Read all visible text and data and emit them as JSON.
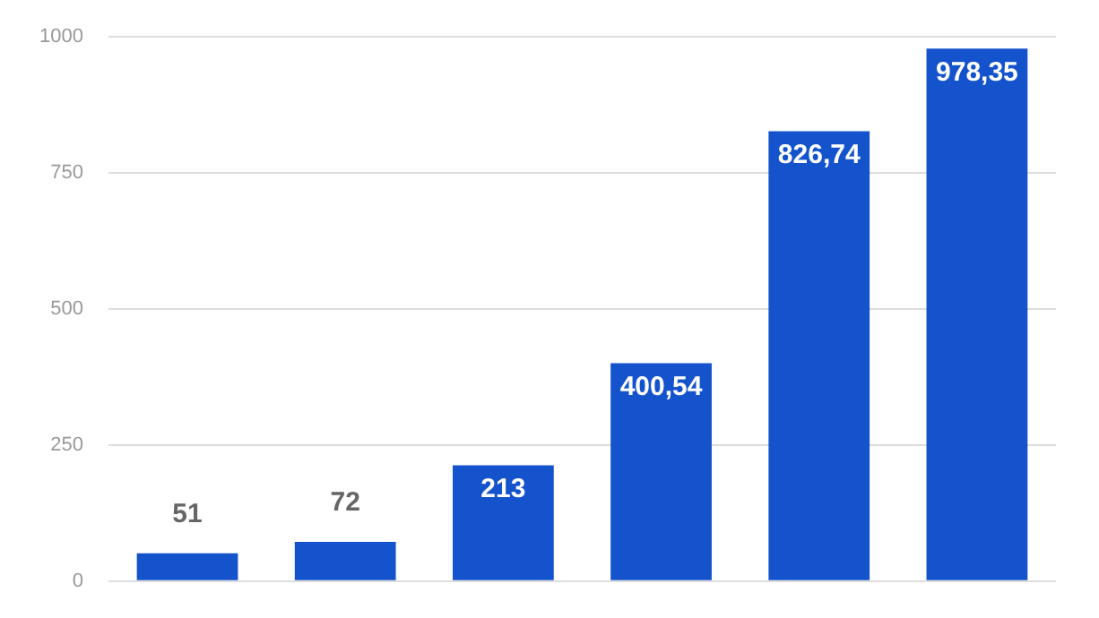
{
  "chart_data": {
    "type": "bar",
    "categories": [
      null,
      null,
      null,
      null,
      null,
      null
    ],
    "values": [
      51,
      72,
      213,
      400.54,
      826.74,
      978.35
    ],
    "value_labels": [
      "51",
      "72",
      "213",
      "400,54",
      "826,74",
      "978,35"
    ],
    "color": "#1453cc",
    "ylim": [
      0,
      1000
    ],
    "yticks": [
      0,
      250,
      500,
      750,
      1000
    ],
    "grid": "y",
    "legend": false
  }
}
